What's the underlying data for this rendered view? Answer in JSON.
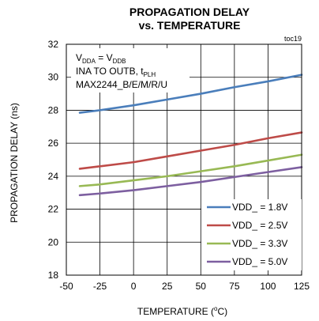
{
  "chart_data": {
    "type": "line",
    "title_line1": "PROPAGATION DELAY",
    "title_line2": "vs. TEMPERATURE",
    "figure_id": "toc19",
    "xlabel_main": "TEMPERATURE (",
    "xlabel_sup": "o",
    "xlabel_tail": "C)",
    "ylabel": "PROPAGATION DELAY (ns)",
    "xlim": [
      -50,
      125
    ],
    "ylim": [
      18,
      32
    ],
    "xticks": [
      -50,
      -25,
      0,
      25,
      50,
      75,
      100,
      125
    ],
    "yticks": [
      18,
      20,
      22,
      24,
      26,
      28,
      30,
      32
    ],
    "grid": true,
    "legend_position": "bottom-right",
    "annotation": {
      "line1_main": "V",
      "line1_sub1": "DDA",
      "line1_mid": " = V",
      "line1_sub2": "DDB",
      "line2_main": "INA TO OUTB, t",
      "line2_sub": "PLH",
      "line3": "MAX2244_B/E/M/R/U"
    },
    "series": [
      {
        "name": "VDD_ = 1.8V",
        "color": "#4a7ebb",
        "x": [
          -40,
          -25,
          0,
          25,
          50,
          75,
          100,
          125
        ],
        "y": [
          27.85,
          28.0,
          28.3,
          28.65,
          29.0,
          29.4,
          29.75,
          30.15
        ]
      },
      {
        "name": "VDD_ = 2.5V",
        "color": "#be4b48",
        "x": [
          -40,
          -25,
          0,
          25,
          50,
          75,
          100,
          125
        ],
        "y": [
          24.45,
          24.6,
          24.85,
          25.2,
          25.55,
          25.9,
          26.3,
          26.65
        ]
      },
      {
        "name": "VDD_ = 3.3V",
        "color": "#98b954",
        "x": [
          -40,
          -25,
          0,
          25,
          50,
          75,
          100,
          125
        ],
        "y": [
          23.4,
          23.5,
          23.75,
          24.0,
          24.3,
          24.6,
          24.95,
          25.3
        ]
      },
      {
        "name": "VDD_ = 5.0V",
        "color": "#7d5fa0",
        "x": [
          -40,
          -25,
          0,
          25,
          50,
          75,
          100,
          125
        ],
        "y": [
          22.85,
          22.95,
          23.15,
          23.4,
          23.65,
          23.95,
          24.25,
          24.55
        ]
      }
    ]
  }
}
